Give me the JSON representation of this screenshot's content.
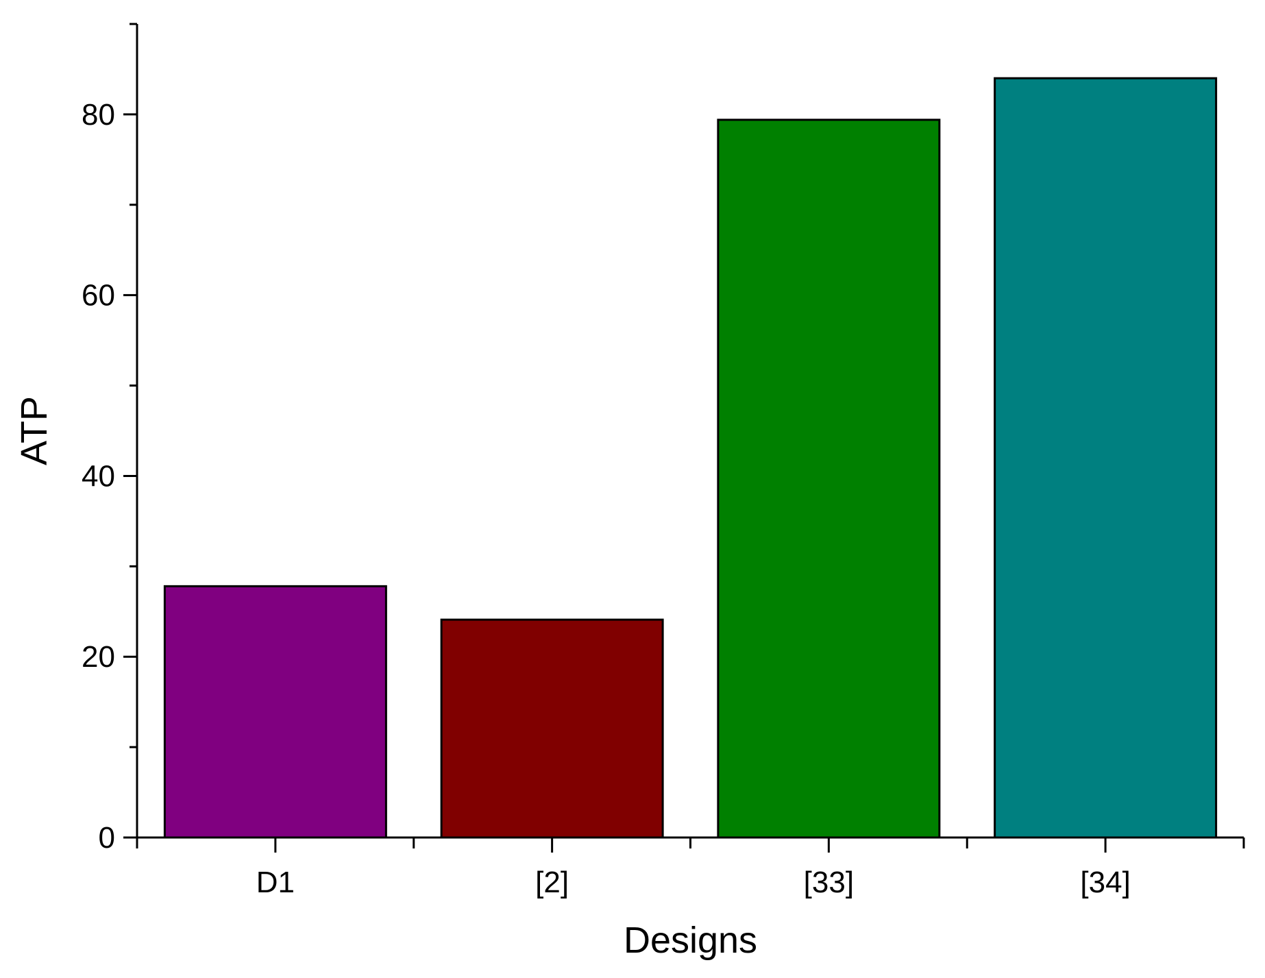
{
  "chart_data": {
    "type": "bar",
    "title": "",
    "xlabel": "Designs",
    "ylabel": "ATP",
    "categories": [
      "D1",
      "[2]",
      "[33]",
      "[34]"
    ],
    "values": [
      27.8,
      24.1,
      79.4,
      84.0
    ],
    "colors": [
      "#800080",
      "#800000",
      "#008000",
      "#008080"
    ],
    "ylim": [
      0,
      90
    ],
    "ytick_values": [
      0,
      20,
      40,
      60,
      80
    ],
    "ytick_labels": [
      "0",
      "20",
      "40",
      "60",
      "80"
    ],
    "yminor_ticks": [
      10,
      30,
      50,
      70,
      90
    ],
    "grid": false,
    "legend": "none"
  }
}
